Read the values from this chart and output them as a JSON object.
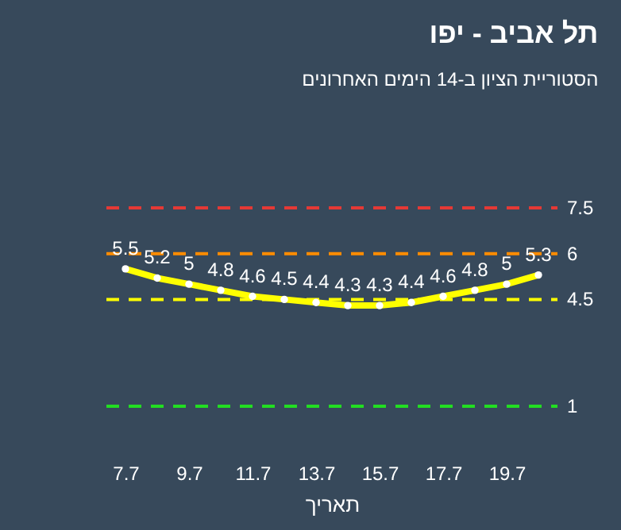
{
  "chart_data": {
    "type": "line",
    "title": "תל אביב - יפו",
    "subtitle": "הסטוריית הציון ב-14 הימים האחרונים",
    "xlabel": "תאריך",
    "categories": [
      "7.7",
      null,
      "9.7",
      null,
      "11.7",
      null,
      "13.7",
      null,
      "15.7",
      null,
      "17.7",
      null,
      "19.7",
      null
    ],
    "series": [
      {
        "color": "#ffff00",
        "values": [
          5.5,
          5.2,
          5,
          4.8,
          4.6,
          4.5,
          4.4,
          4.3,
          4.3,
          4.4,
          4.6,
          4.8,
          5,
          5.3
        ]
      }
    ],
    "tick_labels": "x",
    "data_labels": true,
    "marker": "circle",
    "line_style": "solid",
    "grid": false,
    "ref_lines": [
      {
        "axis": "y",
        "value": 7.5,
        "label": "7.5",
        "color": "#e53935",
        "line_style": "dashed"
      },
      {
        "axis": "y",
        "value": 6,
        "label": "6",
        "color": "#ff8c00",
        "line_style": "dashed"
      },
      {
        "axis": "y",
        "value": 4.5,
        "label": "4.5",
        "color": "#ffff00",
        "line_style": "dashed"
      },
      {
        "axis": "y",
        "value": 1,
        "label": "1",
        "color": "#22dd22",
        "line_style": "dashed"
      }
    ]
  }
}
